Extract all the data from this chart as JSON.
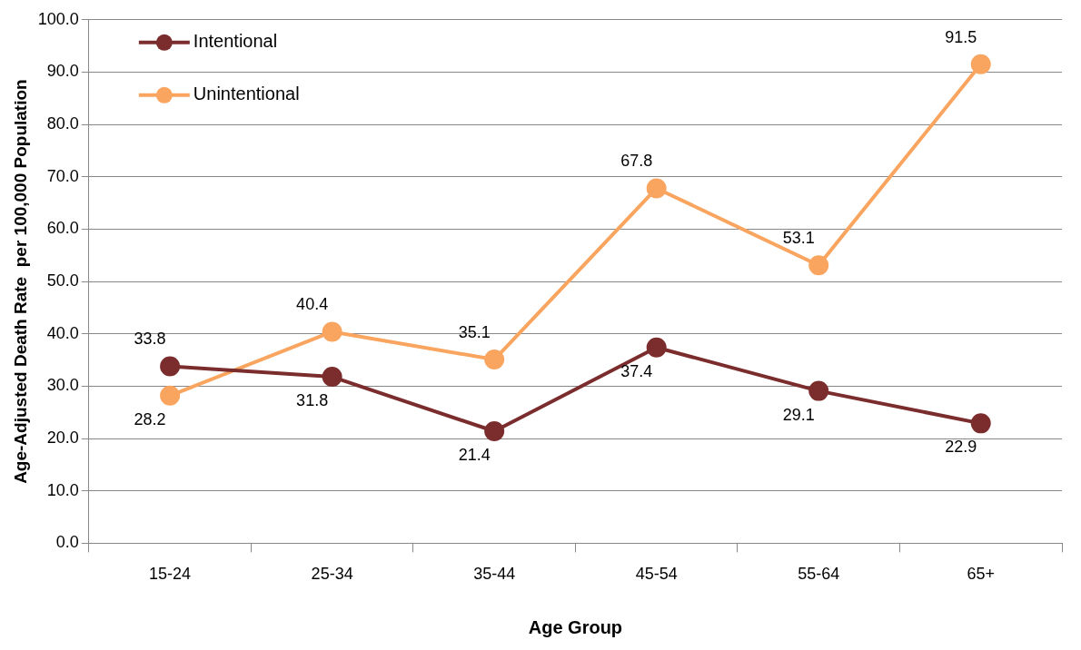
{
  "chart_data": {
    "type": "line",
    "xlabel": "Age Group",
    "ylabel": "Age-Adjusted Death Rate  per 100,000 Population",
    "categories": [
      "15-24",
      "25-34",
      "35-44",
      "45-54",
      "55-64",
      "65+"
    ],
    "series": [
      {
        "name": "Intentional",
        "color": "#7b2c2c",
        "values": [
          33.8,
          31.8,
          21.4,
          37.4,
          29.1,
          22.9
        ]
      },
      {
        "name": "Unintentional",
        "color": "#f9a55f",
        "values": [
          28.2,
          40.4,
          35.1,
          67.8,
          53.1,
          91.5
        ]
      }
    ],
    "ylim": [
      0,
      100
    ],
    "yticks": [
      {
        "value": 0,
        "label": "0.0"
      },
      {
        "value": 10,
        "label": "10.0"
      },
      {
        "value": 20,
        "label": "20.0"
      },
      {
        "value": 30,
        "label": "30.0"
      },
      {
        "value": 40,
        "label": "40.0"
      },
      {
        "value": 50,
        "label": "50.0"
      },
      {
        "value": 60,
        "label": "60.0"
      },
      {
        "value": 70,
        "label": "70.0"
      },
      {
        "value": 80,
        "label": "80.0"
      },
      {
        "value": 90,
        "label": "90.0"
      },
      {
        "value": 100,
        "label": "100.0"
      }
    ],
    "grid": "y",
    "legend": "top left",
    "marker": "circle",
    "line_style": "solid",
    "data_labels": true
  }
}
